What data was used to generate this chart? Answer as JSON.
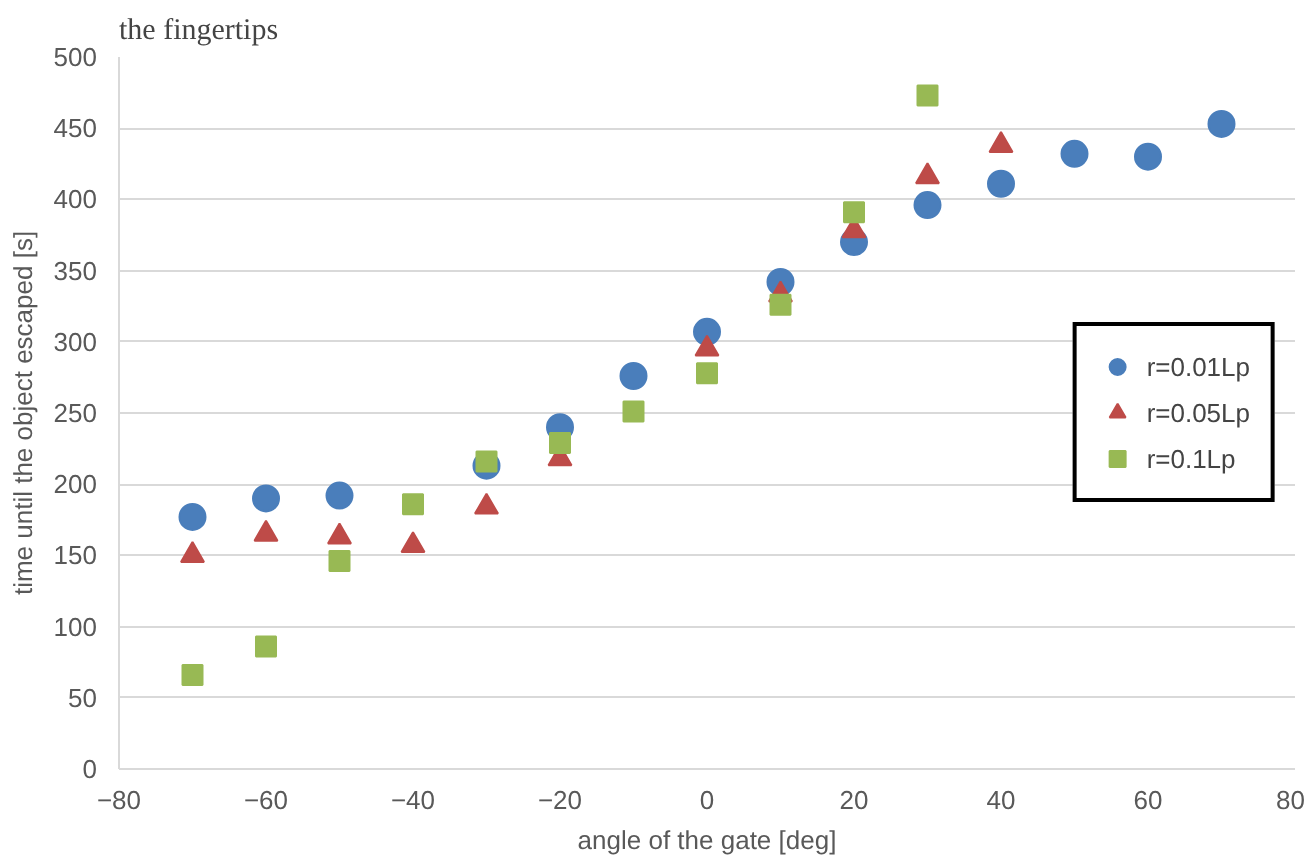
{
  "chart_data": {
    "type": "scatter",
    "xlabel": "angle of the gate [deg]",
    "ylabel": "time until the object escaped [s]",
    "annotations": [
      "the fingertips"
    ],
    "x": [
      -70,
      -60,
      -50,
      -40,
      -30,
      -20,
      -10,
      0,
      10,
      20,
      30,
      40,
      50,
      60,
      70
    ],
    "series": [
      {
        "name": "r=0.01Lp",
        "color": "#4a7ebb",
        "marker": "circle",
        "values": [
          177,
          190,
          192,
          null,
          213,
          240,
          276,
          307,
          342,
          370,
          396,
          411,
          432,
          430,
          453
        ]
      },
      {
        "name": "r=0.05Lp",
        "color": "#be4b48",
        "marker": "triangle",
        "values": [
          150,
          165,
          163,
          157,
          184,
          218,
          null,
          295,
          333,
          378,
          416,
          438,
          null,
          null,
          null
        ]
      },
      {
        "name": "r=0.1Lp",
        "color": "#98b954",
        "marker": "square",
        "values": [
          66,
          86,
          146,
          186,
          216,
          229,
          251,
          278,
          326,
          391,
          473,
          null,
          null,
          null,
          null
        ]
      }
    ],
    "xlim": [
      -80,
      80
    ],
    "xticks": [
      -80,
      -60,
      -40,
      -20,
      0,
      20,
      40,
      60,
      80
    ],
    "ylim": [
      0,
      500
    ],
    "yticks": [
      0,
      50,
      100,
      150,
      200,
      250,
      300,
      350,
      400,
      450,
      500
    ],
    "grid": "y",
    "legend": "right"
  }
}
